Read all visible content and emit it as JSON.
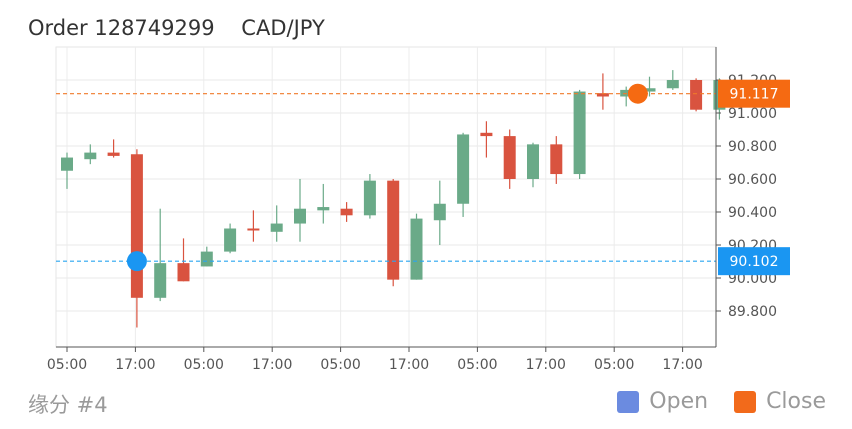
{
  "title": "Order 128749299    CAD/JPY",
  "subtitle": "缘分 #4",
  "legend": [
    {
      "name": "Open",
      "color": "#6b8be0"
    },
    {
      "name": "Close",
      "color": "#f26a1b"
    }
  ],
  "colors": {
    "up": "#6aaa88",
    "down": "#d9533f",
    "open_line": "#2aa5f0",
    "close_line": "#f07a2a",
    "open_marker": "#1a96f2",
    "close_marker": "#f56a12"
  },
  "chart_data": {
    "type": "candlestick",
    "x_ticks": [
      "05:00",
      "17:00",
      "05:00",
      "17:00",
      "05:00",
      "17:00",
      "05:00",
      "17:00",
      "05:00",
      "17:00"
    ],
    "y_ticks": [
      "89.800",
      "90.000",
      "90.200",
      "90.400",
      "90.600",
      "90.800",
      "91.000",
      "91.200"
    ],
    "ylim": [
      89.6,
      91.4
    ],
    "candles": [
      {
        "o": 90.65,
        "h": 90.76,
        "l": 90.54,
        "c": 90.73
      },
      {
        "o": 90.72,
        "h": 90.81,
        "l": 90.69,
        "c": 90.76
      },
      {
        "o": 90.76,
        "h": 90.84,
        "l": 90.73,
        "c": 90.74
      },
      {
        "o": 90.75,
        "h": 90.78,
        "l": 89.7,
        "c": 89.88
      },
      {
        "o": 89.88,
        "h": 90.42,
        "l": 89.86,
        "c": 90.09
      },
      {
        "o": 90.09,
        "h": 90.24,
        "l": 89.98,
        "c": 89.98
      },
      {
        "o": 90.07,
        "h": 90.19,
        "l": 90.07,
        "c": 90.16
      },
      {
        "o": 90.16,
        "h": 90.33,
        "l": 90.15,
        "c": 90.3
      },
      {
        "o": 90.3,
        "h": 90.41,
        "l": 90.22,
        "c": 90.29
      },
      {
        "o": 90.28,
        "h": 90.44,
        "l": 90.22,
        "c": 90.33
      },
      {
        "o": 90.33,
        "h": 90.6,
        "l": 90.22,
        "c": 90.42
      },
      {
        "o": 90.41,
        "h": 90.57,
        "l": 90.33,
        "c": 90.43
      },
      {
        "o": 90.42,
        "h": 90.46,
        "l": 90.34,
        "c": 90.38
      },
      {
        "o": 90.38,
        "h": 90.63,
        "l": 90.36,
        "c": 90.59
      },
      {
        "o": 90.59,
        "h": 90.6,
        "l": 89.95,
        "c": 89.99
      },
      {
        "o": 89.99,
        "h": 90.39,
        "l": 89.99,
        "c": 90.36
      },
      {
        "o": 90.35,
        "h": 90.59,
        "l": 90.2,
        "c": 90.45
      },
      {
        "o": 90.45,
        "h": 90.88,
        "l": 90.37,
        "c": 90.87
      },
      {
        "o": 90.88,
        "h": 90.95,
        "l": 90.73,
        "c": 90.86
      },
      {
        "o": 90.86,
        "h": 90.9,
        "l": 90.54,
        "c": 90.6
      },
      {
        "o": 90.6,
        "h": 90.82,
        "l": 90.55,
        "c": 90.81
      },
      {
        "o": 90.81,
        "h": 90.86,
        "l": 90.57,
        "c": 90.63
      },
      {
        "o": 90.63,
        "h": 91.14,
        "l": 90.6,
        "c": 91.13
      },
      {
        "o": 91.12,
        "h": 91.24,
        "l": 91.02,
        "c": 91.1
      },
      {
        "o": 91.1,
        "h": 91.16,
        "l": 91.04,
        "c": 91.14
      },
      {
        "o": 91.13,
        "h": 91.22,
        "l": 91.1,
        "c": 91.15
      },
      {
        "o": 91.15,
        "h": 91.26,
        "l": 91.14,
        "c": 91.2
      },
      {
        "o": 91.2,
        "h": 91.21,
        "l": 91.01,
        "c": 91.02
      },
      {
        "o": 91.02,
        "h": 91.21,
        "l": 90.96,
        "c": 91.2
      }
    ],
    "open": {
      "price": 90.102,
      "label": "90.102",
      "candle_index": 3
    },
    "close": {
      "price": 91.117,
      "label": "91.117",
      "candle_index": 24.5
    }
  }
}
